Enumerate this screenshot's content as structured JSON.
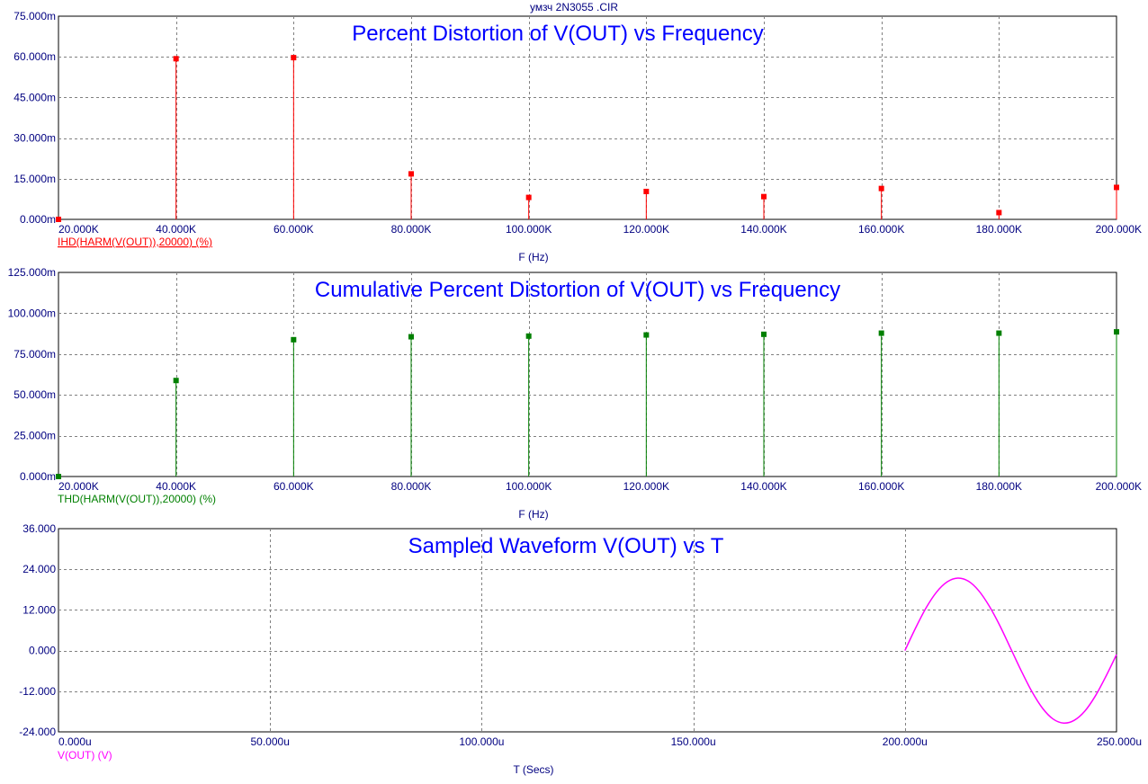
{
  "header": {
    "title": "умзч 2N3055 .CIR"
  },
  "chart_data": [
    {
      "type": "bar",
      "title": "Percent Distortion of V(OUT) vs Frequency",
      "xlabel": "F (Hz)",
      "legend": "IHD(HARM(V(OUT)),20000) (%)",
      "color": "#ff0000",
      "xlim": [
        20000,
        200000
      ],
      "ylim": [
        0,
        0.075
      ],
      "x_ticks": [
        {
          "value": 20000,
          "label": "20.000K"
        },
        {
          "value": 40000,
          "label": "40.000K"
        },
        {
          "value": 60000,
          "label": "60.000K"
        },
        {
          "value": 80000,
          "label": "80.000K"
        },
        {
          "value": 100000,
          "label": "100.000K"
        },
        {
          "value": 120000,
          "label": "120.000K"
        },
        {
          "value": 140000,
          "label": "140.000K"
        },
        {
          "value": 160000,
          "label": "160.000K"
        },
        {
          "value": 180000,
          "label": "180.000K"
        },
        {
          "value": 200000,
          "label": "200.000K"
        }
      ],
      "y_ticks": [
        {
          "value": 0,
          "label": "0.000m"
        },
        {
          "value": 0.015,
          "label": "15.000m"
        },
        {
          "value": 0.03,
          "label": "30.000m"
        },
        {
          "value": 0.045,
          "label": "45.000m"
        },
        {
          "value": 0.06,
          "label": "60.000m"
        },
        {
          "value": 0.075,
          "label": "75.000m"
        }
      ],
      "x": [
        20000,
        40000,
        60000,
        80000,
        100000,
        120000,
        140000,
        160000,
        180000,
        200000
      ],
      "values": [
        0.0,
        0.0593,
        0.0597,
        0.0168,
        0.0081,
        0.0103,
        0.0084,
        0.0114,
        0.0025,
        0.0118
      ]
    },
    {
      "type": "bar",
      "title": "Cumulative Percent Distortion of V(OUT) vs Frequency",
      "xlabel": "F (Hz)",
      "legend": "THD(HARM(V(OUT)),20000) (%)",
      "color": "#008000",
      "xlim": [
        20000,
        200000
      ],
      "ylim": [
        0,
        0.125
      ],
      "x_ticks": [
        {
          "value": 20000,
          "label": "20.000K"
        },
        {
          "value": 40000,
          "label": "40.000K"
        },
        {
          "value": 60000,
          "label": "60.000K"
        },
        {
          "value": 80000,
          "label": "80.000K"
        },
        {
          "value": 100000,
          "label": "100.000K"
        },
        {
          "value": 120000,
          "label": "120.000K"
        },
        {
          "value": 140000,
          "label": "140.000K"
        },
        {
          "value": 160000,
          "label": "160.000K"
        },
        {
          "value": 180000,
          "label": "180.000K"
        },
        {
          "value": 200000,
          "label": "200.000K"
        }
      ],
      "y_ticks": [
        {
          "value": 0,
          "label": "0.000m"
        },
        {
          "value": 0.025,
          "label": "25.000m"
        },
        {
          "value": 0.05,
          "label": "50.000m"
        },
        {
          "value": 0.075,
          "label": "75.000m"
        },
        {
          "value": 0.1,
          "label": "100.000m"
        },
        {
          "value": 0.125,
          "label": "125.000m"
        }
      ],
      "x": [
        20000,
        40000,
        60000,
        80000,
        100000,
        120000,
        140000,
        160000,
        180000,
        200000
      ],
      "values": [
        0.0,
        0.0588,
        0.0838,
        0.0856,
        0.086,
        0.0867,
        0.0871,
        0.0878,
        0.0878,
        0.0886
      ]
    },
    {
      "type": "line",
      "title": "Sampled Waveform  V(OUT) vs T",
      "xlabel": "T (Secs)",
      "legend": "V(OUT) (V)",
      "color": "#ff00ff",
      "xlim": [
        0,
        0.00025
      ],
      "ylim": [
        -24,
        36
      ],
      "x_ticks": [
        {
          "value": 0,
          "label": "0.000u"
        },
        {
          "value": 5e-05,
          "label": "50.000u"
        },
        {
          "value": 0.0001,
          "label": "100.000u"
        },
        {
          "value": 0.00015,
          "label": "150.000u"
        },
        {
          "value": 0.0002,
          "label": "200.000u"
        },
        {
          "value": 0.00025,
          "label": "250.000u"
        }
      ],
      "y_ticks": [
        {
          "value": -24,
          "label": "-24.000"
        },
        {
          "value": -12,
          "label": "-12.000"
        },
        {
          "value": 0,
          "label": "0.000"
        },
        {
          "value": 12,
          "label": "12.000"
        },
        {
          "value": 24,
          "label": "24.000"
        },
        {
          "value": 36,
          "label": "36.000"
        }
      ],
      "x": [
        0.0002,
        0.0002025,
        0.000205,
        0.0002075,
        0.00021,
        0.0002125,
        0.000215,
        0.0002175,
        0.00022,
        0.0002225,
        0.000225,
        0.0002275,
        0.00023,
        0.0002325,
        0.000235,
        0.0002375,
        0.00024,
        0.0002425,
        0.000245,
        0.0002475,
        0.00025
      ],
      "values": [
        0.0,
        6.6,
        12.6,
        17.3,
        20.3,
        21.4,
        20.5,
        17.6,
        13.0,
        7.2,
        0.6,
        -6.0,
        -12.1,
        -17.0,
        -20.2,
        -21.4,
        -20.6,
        -17.9,
        -13.4,
        -7.6,
        -1.2
      ]
    }
  ]
}
